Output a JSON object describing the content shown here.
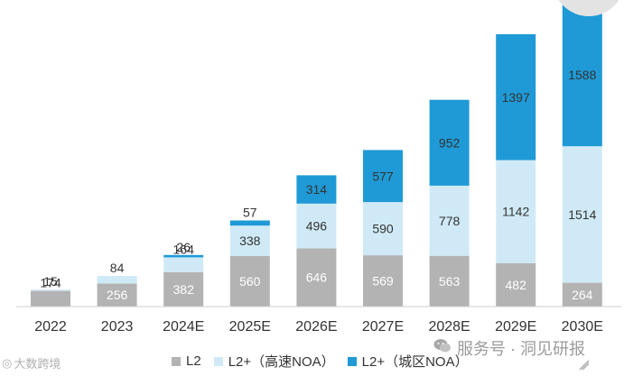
{
  "chart_data": {
    "type": "bar",
    "stacked": true,
    "categories": [
      "2022",
      "2023",
      "2024E",
      "2025E",
      "2026E",
      "2027E",
      "2028E",
      "2029E",
      "2030E"
    ],
    "series": [
      {
        "name": "L2",
        "color": "#b3b3b3",
        "values": [
          174,
          256,
          382,
          560,
          646,
          569,
          563,
          482,
          264
        ]
      },
      {
        "name": "L2+（高速NOA）",
        "color": "#cfeaf6",
        "values": [
          15,
          84,
          164,
          338,
          496,
          590,
          778,
          1142,
          1514
        ]
      },
      {
        "name": "L2+（城区NOA）",
        "color": "#1f9ad6",
        "values": [
          0,
          0,
          26,
          57,
          314,
          577,
          952,
          1397,
          1588
        ]
      }
    ],
    "data_labels": [
      [
        "174",
        "256",
        "382",
        "560",
        "646",
        "569",
        "563",
        "482",
        "264"
      ],
      [
        "15",
        "84",
        "164",
        "338",
        "496",
        "590",
        "778",
        "1142",
        "1514"
      ],
      [
        "",
        "",
        "26",
        "57",
        "314",
        "577",
        "952",
        "1397",
        "1588"
      ]
    ],
    "ylim": [
      0,
      3400
    ],
    "title": "",
    "xlabel": "",
    "ylabel": "",
    "legend_position": "bottom",
    "grid": false
  },
  "watermarks": {
    "left_text": "大数跨境",
    "right_text": "服务号 · 洞见研报"
  }
}
